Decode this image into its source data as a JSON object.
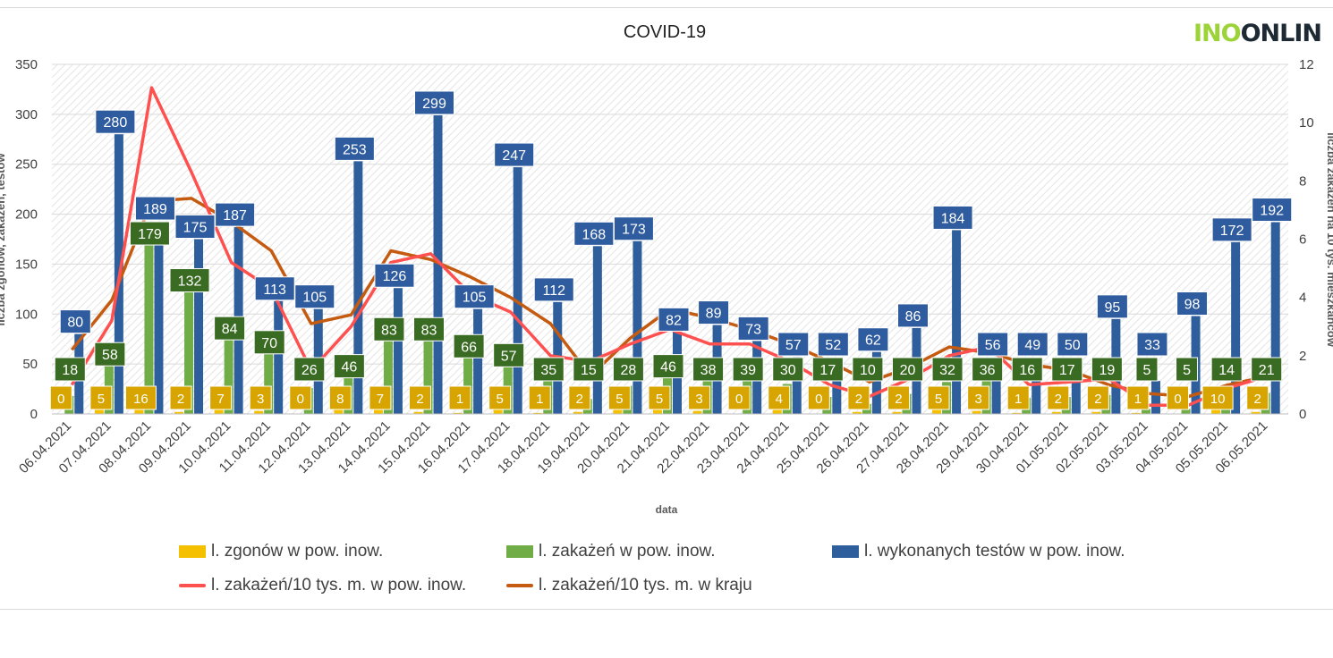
{
  "logo": {
    "part1": "INO",
    "part2": "ONLIN"
  },
  "colors": {
    "deaths": "#f5c000",
    "infections": "#70ad47",
    "tests": "#2e5f9c",
    "local_rate": "#ff5050",
    "country_rate": "#c55a11",
    "label_green": "#3a6b22",
    "label_blue": "#2f5c9f",
    "label_orange": "#d8a500"
  },
  "chart_data": {
    "type": "bar",
    "title": "COVID-19",
    "xlabel": "data",
    "ylabel_left": "liczba zgonów, zakażeń, testów",
    "ylabel_right": "liczba zakażeń na 10 tys. mieszkańców",
    "ylim_left": [
      0,
      350
    ],
    "yticks_left": [
      "0",
      "50",
      "100",
      "150",
      "200",
      "250",
      "300",
      "350"
    ],
    "ylim_right": [
      0,
      12
    ],
    "yticks_right": [
      "0",
      "2",
      "4",
      "6",
      "8",
      "10",
      "12"
    ],
    "grid": true,
    "legend_position": "bottom",
    "categories": [
      "06.04.2021",
      "07.04.2021",
      "08.04.2021",
      "09.04.2021",
      "10.04.2021",
      "11.04.2021",
      "12.04.2021",
      "13.04.2021",
      "14.04.2021",
      "15.04.2021",
      "16.04.2021",
      "17.04.2021",
      "18.04.2021",
      "19.04.2021",
      "20.04.2021",
      "21.04.2021",
      "22.04.2021",
      "23.04.2021",
      "24.04.2021",
      "25.04.2021",
      "26.04.2021",
      "27.04.2021",
      "28.04.2021",
      "29.04.2021",
      "30.04.2021",
      "01.05.2021",
      "02.05.2021",
      "03.05.2021",
      "04.05.2021",
      "05.05.2021",
      "06.05.2021"
    ],
    "series": [
      {
        "name": "l. zgonów w pow. inow.",
        "axis": "left",
        "kind": "bar",
        "values": [
          0,
          5,
          16,
          2,
          7,
          3,
          0,
          8,
          7,
          2,
          1,
          5,
          1,
          2,
          5,
          5,
          3,
          0,
          4,
          0,
          2,
          2,
          5,
          3,
          1,
          2,
          2,
          1,
          0,
          10,
          2
        ]
      },
      {
        "name": "l. zakażeń w pow. inow.",
        "axis": "left",
        "kind": "bar",
        "values": [
          18,
          58,
          179,
          132,
          84,
          70,
          26,
          46,
          83,
          83,
          66,
          57,
          35,
          15,
          28,
          46,
          38,
          39,
          30,
          17,
          10,
          20,
          32,
          36,
          16,
          17,
          19,
          5,
          5,
          14,
          21
        ]
      },
      {
        "name": "l. wykonanych testów w pow. inow.",
        "axis": "left",
        "kind": "bar",
        "values": [
          80,
          280,
          189,
          175,
          187,
          113,
          105,
          253,
          126,
          299,
          105,
          247,
          112,
          168,
          173,
          82,
          89,
          73,
          57,
          52,
          62,
          86,
          184,
          56,
          49,
          50,
          95,
          33,
          98,
          172,
          192
        ]
      },
      {
        "name": "l. zakażeń/10 tys. m. w pow. inow.",
        "axis": "right",
        "kind": "line",
        "values": [
          1.0,
          3.2,
          11.2,
          8.3,
          5.2,
          4.3,
          1.5,
          3.0,
          5.2,
          5.5,
          4.1,
          3.5,
          2.0,
          1.8,
          2.4,
          2.9,
          2.4,
          2.4,
          1.8,
          1.0,
          0.6,
          1.2,
          2.0,
          2.3,
          1.0,
          1.1,
          1.2,
          0.3,
          0.3,
          0.9,
          1.3
        ]
      },
      {
        "name": "l. zakażeń/10 tys. m. w kraju",
        "axis": "right",
        "kind": "line",
        "values": [
          2.2,
          3.9,
          7.3,
          7.4,
          6.6,
          5.6,
          3.1,
          3.4,
          5.6,
          5.3,
          4.7,
          4.0,
          3.1,
          1.3,
          2.6,
          3.6,
          3.3,
          2.9,
          2.4,
          1.8,
          1.1,
          1.6,
          2.3,
          2.1,
          1.7,
          1.5,
          1.0,
          0.7,
          0.6,
          1.0,
          1.3
        ]
      }
    ]
  }
}
